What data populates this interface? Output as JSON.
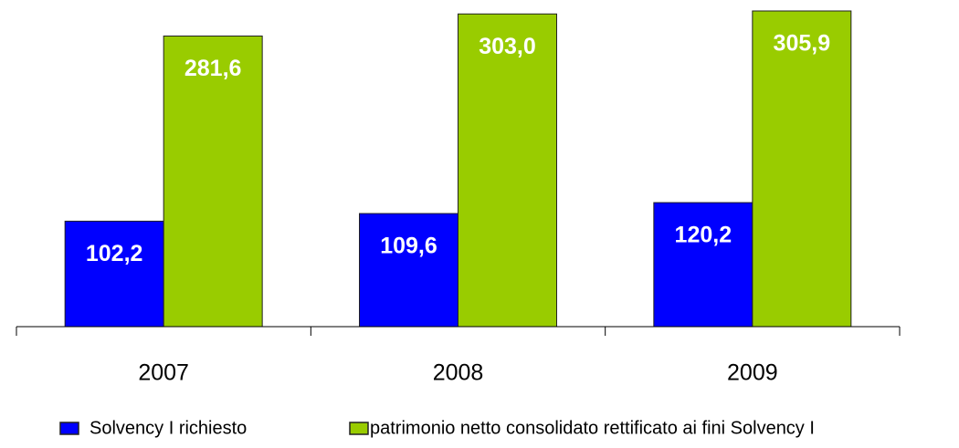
{
  "chart_data": {
    "type": "bar",
    "categories": [
      "2007",
      "2008",
      "2009"
    ],
    "series": [
      {
        "name": "Solvency I richiesto",
        "color": "#0000ff",
        "values": [
          102.2,
          109.6,
          120.2
        ],
        "value_labels": [
          "102,2",
          "109,6",
          "120,2"
        ]
      },
      {
        "name": "patrimonio netto consolidato rettificato ai fini Solvency I",
        "color": "#99cc00",
        "values": [
          281.6,
          303.0,
          305.9
        ],
        "value_labels": [
          "281,6",
          "303,0",
          "305,9"
        ]
      }
    ],
    "legend": "bottom"
  }
}
